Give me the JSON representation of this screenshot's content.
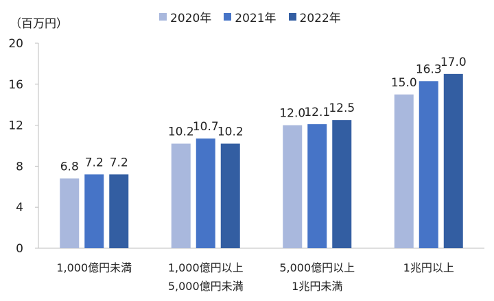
{
  "chart_data": {
    "type": "bar",
    "unit_label": "（百万円）",
    "categories": [
      [
        "1,000億円未満"
      ],
      [
        "1,000億円以上",
        "5,000億円未満"
      ],
      [
        "5,000億円以上",
        "1兆円未満"
      ],
      [
        "1兆円以上"
      ]
    ],
    "series": [
      {
        "name": "2020年",
        "color": "#a9b8dd",
        "values": [
          6.8,
          10.2,
          12.0,
          15.0
        ]
      },
      {
        "name": "2021年",
        "color": "#4674c7",
        "values": [
          7.2,
          10.7,
          12.1,
          16.3
        ]
      },
      {
        "name": "2022年",
        "color": "#335ea2",
        "values": [
          7.2,
          10.2,
          12.5,
          17.0
        ]
      }
    ],
    "ylim": [
      0,
      20
    ],
    "yticks": [
      0,
      4,
      8,
      12,
      16,
      20
    ],
    "grid": false,
    "legend_position": "top"
  }
}
